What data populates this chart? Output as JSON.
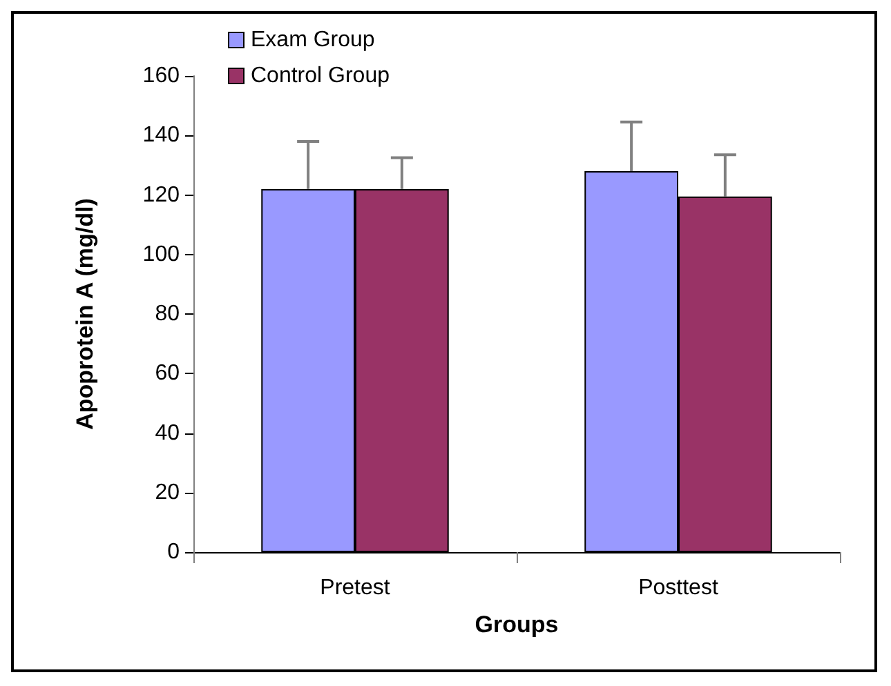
{
  "chart_data": {
    "type": "bar",
    "xlabel": "Groups",
    "ylabel": "Apoprotein A (mg/dl)",
    "categories": [
      "Pretest",
      "Posttest"
    ],
    "series": [
      {
        "name": "Exam Group",
        "color": "#9999ff",
        "values": [
          122,
          128
        ],
        "errors": [
          [
            122,
            138
          ],
          [
            128,
            144.5
          ]
        ]
      },
      {
        "name": "Control Group",
        "color": "#993366",
        "values": [
          122,
          119.5
        ],
        "errors": [
          [
            122,
            132.5
          ],
          [
            119.5,
            133.5
          ]
        ]
      }
    ],
    "ylim": [
      0,
      160
    ],
    "yticks": [
      0,
      20,
      40,
      60,
      80,
      100,
      120,
      140,
      160
    ],
    "grid": false,
    "legend": "top left"
  }
}
